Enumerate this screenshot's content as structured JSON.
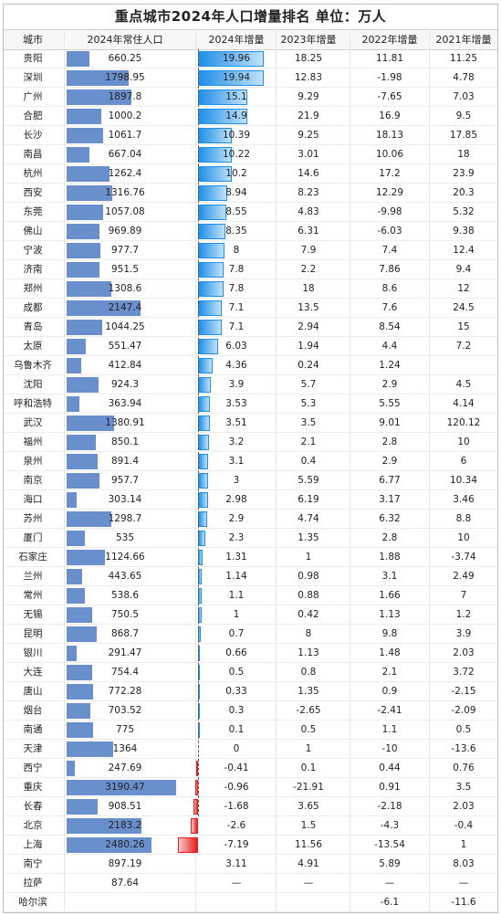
{
  "title": "重点城市2024年人口增量排名    单位：万人",
  "headers": {
    "city": "城市",
    "pop2024": "2024年常住人口",
    "inc2024": "2024年增量",
    "inc2023": "2023年增量",
    "inc2022": "2022年增量",
    "inc2021": "2021年增量"
  },
  "colors": {
    "pop_bar": "#6a8fcd",
    "inc_positive": "#1f8ee6",
    "inc_negative": "#e81c1c"
  },
  "chart_data": {
    "type": "table",
    "title": "重点城市2024年人口增量排名    单位：万人",
    "columns": [
      "城市",
      "2024年常住人口",
      "2024年增量",
      "2023年增量",
      "2022年增量",
      "2021年增量"
    ],
    "pop_max": 3190.47,
    "inc_range": [
      -7.19,
      19.96
    ],
    "rows": [
      {
        "city": "贵阳",
        "pop": "660.25",
        "inc": "19.96",
        "y23": "18.25",
        "y22": "11.81",
        "y21": "11.25"
      },
      {
        "city": "深圳",
        "pop": "1798.95",
        "inc": "19.94",
        "y23": "12.83",
        "y22": "-1.98",
        "y21": "4.78"
      },
      {
        "city": "广州",
        "pop": "1897.8",
        "inc": "15.1",
        "y23": "9.29",
        "y22": "-7.65",
        "y21": "7.03"
      },
      {
        "city": "合肥",
        "pop": "1000.2",
        "inc": "14.9",
        "y23": "21.9",
        "y22": "16.9",
        "y21": "9.5"
      },
      {
        "city": "长沙",
        "pop": "1061.7",
        "inc": "10.39",
        "y23": "9.25",
        "y22": "18.13",
        "y21": "17.85"
      },
      {
        "city": "南昌",
        "pop": "667.04",
        "inc": "10.22",
        "y23": "3.01",
        "y22": "10.06",
        "y21": "18"
      },
      {
        "city": "杭州",
        "pop": "1262.4",
        "inc": "10.2",
        "y23": "14.6",
        "y22": "17.2",
        "y21": "23.9"
      },
      {
        "city": "西安",
        "pop": "1316.76",
        "inc": "8.94",
        "y23": "8.23",
        "y22": "12.29",
        "y21": "20.3"
      },
      {
        "city": "东莞",
        "pop": "1057.08",
        "inc": "8.55",
        "y23": "4.83",
        "y22": "-9.98",
        "y21": "5.32"
      },
      {
        "city": "佛山",
        "pop": "969.89",
        "inc": "8.35",
        "y23": "6.31",
        "y22": "-6.03",
        "y21": "9.38"
      },
      {
        "city": "宁波",
        "pop": "977.7",
        "inc": "8",
        "y23": "7.9",
        "y22": "7.4",
        "y21": "12.4"
      },
      {
        "city": "济南",
        "pop": "951.5",
        "inc": "7.8",
        "y23": "2.2",
        "y22": "7.86",
        "y21": "9.4"
      },
      {
        "city": "郑州",
        "pop": "1308.6",
        "inc": "7.8",
        "y23": "18",
        "y22": "8.6",
        "y21": "12"
      },
      {
        "city": "成都",
        "pop": "2147.4",
        "inc": "7.1",
        "y23": "13.5",
        "y22": "7.6",
        "y21": "24.5"
      },
      {
        "city": "青岛",
        "pop": "1044.25",
        "inc": "7.1",
        "y23": "2.94",
        "y22": "8.54",
        "y21": "15"
      },
      {
        "city": "太原",
        "pop": "551.47",
        "inc": "6.03",
        "y23": "1.94",
        "y22": "4.4",
        "y21": "7.2"
      },
      {
        "city": "乌鲁木齐",
        "pop": "412.84",
        "inc": "4.36",
        "y23": "0.24",
        "y22": "1.24",
        "y21": ""
      },
      {
        "city": "沈阳",
        "pop": "924.3",
        "inc": "3.9",
        "y23": "5.7",
        "y22": "2.9",
        "y21": "4.5"
      },
      {
        "city": "呼和浩特",
        "pop": "363.94",
        "inc": "3.53",
        "y23": "5.3",
        "y22": "5.55",
        "y21": "4.14"
      },
      {
        "city": "武汉",
        "pop": "1380.91",
        "inc": "3.51",
        "y23": "3.5",
        "y22": "9.01",
        "y21": "120.12"
      },
      {
        "city": "福州",
        "pop": "850.1",
        "inc": "3.2",
        "y23": "2.1",
        "y22": "2.8",
        "y21": "10"
      },
      {
        "city": "泉州",
        "pop": "891.4",
        "inc": "3.1",
        "y23": "0.4",
        "y22": "2.9",
        "y21": "6"
      },
      {
        "city": "南京",
        "pop": "957.7",
        "inc": "3",
        "y23": "5.59",
        "y22": "6.77",
        "y21": "10.34"
      },
      {
        "city": "海口",
        "pop": "303.14",
        "inc": "2.98",
        "y23": "6.19",
        "y22": "3.17",
        "y21": "3.46"
      },
      {
        "city": "苏州",
        "pop": "1298.7",
        "inc": "2.9",
        "y23": "4.74",
        "y22": "6.32",
        "y21": "8.8"
      },
      {
        "city": "厦门",
        "pop": "535",
        "inc": "2.3",
        "y23": "1.35",
        "y22": "2.8",
        "y21": "10"
      },
      {
        "city": "石家庄",
        "pop": "1124.66",
        "inc": "1.31",
        "y23": "1",
        "y22": "1.88",
        "y21": "-3.74"
      },
      {
        "city": "兰州",
        "pop": "443.65",
        "inc": "1.14",
        "y23": "0.98",
        "y22": "3.1",
        "y21": "2.49"
      },
      {
        "city": "常州",
        "pop": "538.6",
        "inc": "1.1",
        "y23": "0.88",
        "y22": "1.66",
        "y21": "7"
      },
      {
        "city": "无锡",
        "pop": "750.5",
        "inc": "1",
        "y23": "0.42",
        "y22": "1.13",
        "y21": "1.2"
      },
      {
        "city": "昆明",
        "pop": "868.7",
        "inc": "0.7",
        "y23": "8",
        "y22": "9.8",
        "y21": "3.9"
      },
      {
        "city": "银川",
        "pop": "291.47",
        "inc": "0.66",
        "y23": "1.13",
        "y22": "1.48",
        "y21": "2.03"
      },
      {
        "city": "大连",
        "pop": "754.4",
        "inc": "0.5",
        "y23": "0.8",
        "y22": "2.1",
        "y21": "3.72"
      },
      {
        "city": "唐山",
        "pop": "772.28",
        "inc": "0.33",
        "y23": "1.35",
        "y22": "0.9",
        "y21": "-2.15"
      },
      {
        "city": "烟台",
        "pop": "703.52",
        "inc": "0.3",
        "y23": "-2.65",
        "y22": "-2.41",
        "y21": "-2.09"
      },
      {
        "city": "南通",
        "pop": "775",
        "inc": "0.1",
        "y23": "0.5",
        "y22": "1.1",
        "y21": "0.5"
      },
      {
        "city": "天津",
        "pop": "1364",
        "inc": "0",
        "y23": "1",
        "y22": "-10",
        "y21": "-13.6"
      },
      {
        "city": "西宁",
        "pop": "247.69",
        "inc": "-0.41",
        "y23": "0.1",
        "y22": "0.44",
        "y21": "0.76"
      },
      {
        "city": "重庆",
        "pop": "3190.47",
        "inc": "-0.96",
        "y23": "-21.91",
        "y22": "0.91",
        "y21": "3.5"
      },
      {
        "city": "长春",
        "pop": "908.51",
        "inc": "-1.68",
        "y23": "3.65",
        "y22": "-2.18",
        "y21": "2.03"
      },
      {
        "city": "北京",
        "pop": "2183.2",
        "inc": "-2.6",
        "y23": "1.5",
        "y22": "-4.3",
        "y21": "-0.4"
      },
      {
        "city": "上海",
        "pop": "2480.26",
        "inc": "-7.19",
        "y23": "11.56",
        "y22": "-13.54",
        "y21": "1"
      },
      {
        "city": "南宁",
        "pop": "897.19",
        "inc": "3.11",
        "y23": "4.91",
        "y22": "5.89",
        "y21": "8.03",
        "nobar": true
      },
      {
        "city": "拉萨",
        "pop": "87.64",
        "inc": "—",
        "y23": "—",
        "y22": "—",
        "y21": "—",
        "nobar": true
      },
      {
        "city": "哈尔滨",
        "pop": "",
        "inc": "",
        "y23": "",
        "y22": "-6.1",
        "y21": "-11.6",
        "nobar": true
      }
    ]
  }
}
